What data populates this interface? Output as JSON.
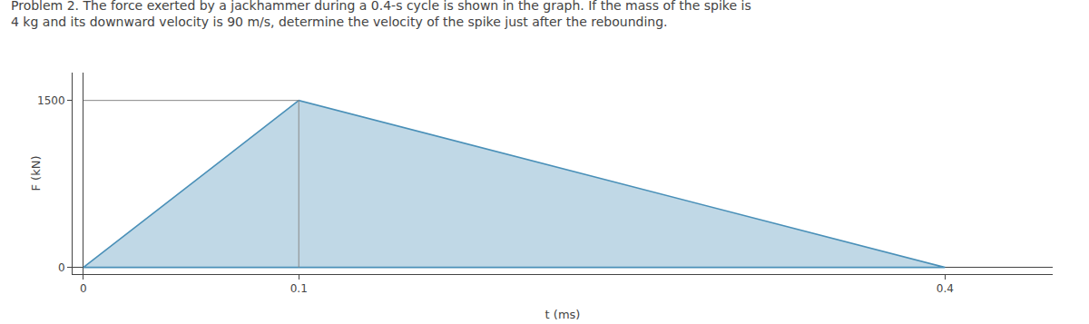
{
  "chart_data": {
    "type": "area",
    "title": "Problem 2. The force exerted by a jackhammer during a 0.4-s cycle is shown in the graph. If the mass of the spike is\n4 kg and its downward velocity is 90 m/s, determine the velocity of the spike just after the rebounding.",
    "xlabel": "t (ms)",
    "ylabel": "F (kN)",
    "series": [
      {
        "type": "area",
        "x": [
          0,
          0.1,
          0.4,
          0
        ],
        "values": [
          0,
          1500,
          0,
          0
        ],
        "color": "#4a90b8"
      },
      {
        "type": "line",
        "x": [
          0,
          0.1
        ],
        "values": [
          1500,
          1500
        ],
        "color": "#888888"
      },
      {
        "type": "line",
        "x": [
          0.1,
          0.1
        ],
        "values": [
          0,
          1500
        ],
        "color": "#888888"
      }
    ],
    "xlim": [
      -0.005,
      0.45
    ],
    "ylim": [
      -60,
      1750
    ],
    "xticks": [
      0,
      0.1,
      0.4
    ],
    "yticks": [
      0,
      1500
    ],
    "grid": false
  }
}
